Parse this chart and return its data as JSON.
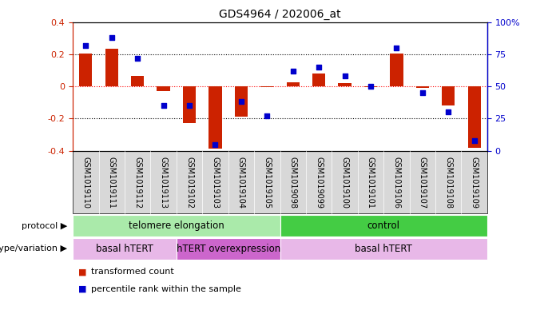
{
  "title": "GDS4964 / 202006_at",
  "samples": [
    "GSM1019110",
    "GSM1019111",
    "GSM1019112",
    "GSM1019113",
    "GSM1019102",
    "GSM1019103",
    "GSM1019104",
    "GSM1019105",
    "GSM1019098",
    "GSM1019099",
    "GSM1019100",
    "GSM1019101",
    "GSM1019106",
    "GSM1019107",
    "GSM1019108",
    "GSM1019109"
  ],
  "bar_values": [
    0.205,
    0.235,
    0.065,
    -0.03,
    -0.23,
    -0.385,
    -0.19,
    -0.005,
    0.025,
    0.08,
    0.02,
    -0.005,
    0.205,
    -0.01,
    -0.12,
    -0.38
  ],
  "dot_values": [
    82,
    88,
    72,
    35,
    35,
    5,
    38,
    27,
    62,
    65,
    58,
    50,
    80,
    45,
    30,
    8
  ],
  "ylim": [
    -0.4,
    0.4
  ],
  "y2lim": [
    0,
    100
  ],
  "yticks": [
    -0.4,
    -0.2,
    0.0,
    0.2,
    0.4
  ],
  "y2ticks": [
    0,
    25,
    50,
    75,
    100
  ],
  "y2ticklabels": [
    "0",
    "25",
    "50",
    "75",
    "100%"
  ],
  "hlines": [
    0.2,
    0.0,
    -0.2
  ],
  "hline_colors": [
    "black",
    "red",
    "black"
  ],
  "hline_styles": [
    "dotted",
    "dotted",
    "dotted"
  ],
  "bar_color": "#cc2200",
  "dot_color": "#0000cc",
  "protocol_labels": [
    {
      "text": "telomere elongation",
      "start": 0,
      "end": 7,
      "color": "#aaeaaa"
    },
    {
      "text": "control",
      "start": 8,
      "end": 15,
      "color": "#44cc44"
    }
  ],
  "genotype_labels": [
    {
      "text": "basal hTERT",
      "start": 0,
      "end": 3,
      "color": "#e8b8e8"
    },
    {
      "text": "hTERT overexpression",
      "start": 4,
      "end": 7,
      "color": "#cc66cc"
    },
    {
      "text": "basal hTERT",
      "start": 8,
      "end": 15,
      "color": "#e8b8e8"
    }
  ],
  "protocol_row_label": "protocol",
  "genotype_row_label": "genotype/variation",
  "legend1_label": "transformed count",
  "legend2_label": "percentile rank within the sample",
  "background_color": "#ffffff",
  "sample_bg_color": "#d8d8d8",
  "bar_color_legend": "#cc2200",
  "dot_color_legend": "#0000cc"
}
